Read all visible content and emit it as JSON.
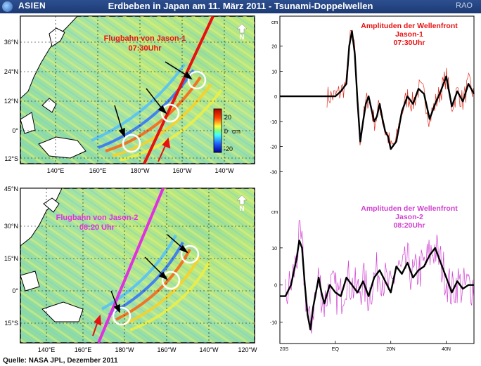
{
  "header": {
    "region": "ASIEN",
    "title": "Erdbeben in Japan am 11. März 2011 - Tsunami-Doppelwellen",
    "badge": "RAO"
  },
  "footer": {
    "source": "Quelle:  NASA JPL, Dezember 2011"
  },
  "map_top": {
    "label_line1": "Flugbahn von Jason-1",
    "label_line2": "07:30Uhr",
    "lat_labels": [
      "36°N",
      "24°N",
      "12°N",
      "0°",
      "12°S"
    ],
    "lon_labels": [
      "140°E",
      "160°E",
      "180°W",
      "160°W",
      "140°W"
    ],
    "colorbar_ticks": [
      "20",
      "0",
      "-20"
    ],
    "colorbar_unit": "cm",
    "north_label": "N"
  },
  "map_bottom": {
    "label_line1": "Flugbahn von Jason-2",
    "label_line2": "08:20 Uhr",
    "lat_labels": [
      "45°N",
      "30°N",
      "15°N",
      "0°",
      "15°S"
    ],
    "lon_labels": [
      "140°E",
      "160°E",
      "180°W",
      "160°W",
      "140°W",
      "120°W"
    ],
    "north_label": "N"
  },
  "chart_data": [
    {
      "type": "line",
      "title": "Amplituden der Wellenfront Jason-1 07:30Uhr",
      "title_lines": [
        "Amplituden der Wellenfront",
        "Jason-1",
        "07:30Uhr"
      ],
      "ylabel": "cm",
      "ylim": [
        -40,
        30
      ],
      "yticks": [
        "20",
        "10",
        "0",
        "-10",
        "-20",
        "-30"
      ],
      "xlim": [
        -20,
        50
      ],
      "series": [
        {
          "color": "#e03020",
          "style": "thin-noisy"
        },
        {
          "color": "#000000",
          "style": "thick-smoothed",
          "x": [
            -20,
            -3,
            0,
            2,
            4,
            5,
            6,
            7,
            8,
            9,
            10,
            11,
            12,
            13,
            14,
            15,
            16,
            17,
            18,
            19,
            20,
            22,
            24,
            26,
            28,
            30,
            32,
            34,
            36,
            38,
            40,
            42,
            44,
            46,
            48,
            50
          ],
          "y": [
            0,
            0,
            0,
            2,
            5,
            20,
            26,
            17,
            -2,
            -18,
            -10,
            -3,
            0,
            -5,
            -10,
            -8,
            -3,
            -9,
            -14,
            -16,
            -21,
            -18,
            -6,
            0,
            -3,
            3,
            1,
            -9,
            -3,
            2,
            8,
            -4,
            2,
            -2,
            5,
            1
          ]
        }
      ]
    },
    {
      "type": "line",
      "title": "Amplituden der Wellenfront Jason-2 08:20Uhr",
      "title_lines": [
        "Amplituden der Wellenfront",
        "Jason-2",
        "08:20Uhr"
      ],
      "ylabel": "cm",
      "ylim": [
        -15,
        20
      ],
      "yticks": [
        "10",
        "0",
        "-10"
      ],
      "xlim": [
        -20,
        50
      ],
      "xticks": [
        "20S",
        "EQ",
        "20N",
        "40N"
      ],
      "xtick_values": [
        -20,
        0,
        20,
        40
      ],
      "series": [
        {
          "color": "#d040d0",
          "style": "thin-noisy"
        },
        {
          "color": "#000000",
          "style": "thick-smoothed",
          "x": [
            -20,
            -18,
            -16,
            -14,
            -13,
            -12,
            -11,
            -10,
            -9,
            -8,
            -7,
            -6,
            -5,
            -4,
            -2,
            0,
            2,
            4,
            6,
            8,
            10,
            12,
            14,
            16,
            18,
            20,
            22,
            24,
            26,
            28,
            30,
            32,
            34,
            36,
            38,
            40,
            42,
            44,
            46,
            48,
            50
          ],
          "y": [
            -3,
            -3,
            0,
            7,
            12,
            10,
            0,
            -8,
            -12,
            -6,
            -2,
            2,
            -2,
            -5,
            0,
            -2,
            -3,
            2,
            0,
            -2,
            1,
            -3,
            2,
            4,
            1,
            -2,
            5,
            3,
            6,
            2,
            4,
            5,
            8,
            10,
            6,
            2,
            -2,
            1,
            -1,
            0,
            0
          ]
        }
      ]
    }
  ]
}
